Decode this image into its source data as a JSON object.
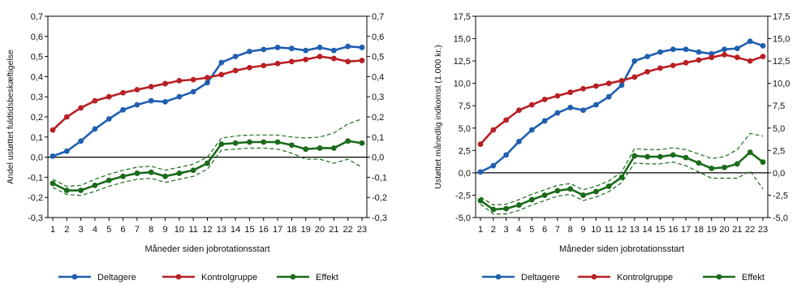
{
  "chart_data": [
    {
      "type": "line",
      "ylabel": "Andel ustøttet fuldtidsbeskæftigelse",
      "xlabel": "Måneder siden jobrotationsstart",
      "x": [
        1,
        2,
        3,
        4,
        5,
        6,
        7,
        8,
        9,
        10,
        11,
        12,
        13,
        14,
        15,
        16,
        17,
        18,
        19,
        20,
        21,
        22,
        23
      ],
      "ylim": [
        -0.3,
        0.7
      ],
      "yticks": [
        "-0,3",
        "-0,2",
        "-0,1",
        "0,0",
        "0,1",
        "0,2",
        "0,3",
        "0,4",
        "0,5",
        "0,6",
        "0,7"
      ],
      "series": [
        {
          "name": "Deltagere",
          "color": "#1f5fb0",
          "values": [
            0.005,
            0.03,
            0.08,
            0.14,
            0.19,
            0.235,
            0.26,
            0.28,
            0.275,
            0.3,
            0.325,
            0.37,
            0.47,
            0.5,
            0.525,
            0.535,
            0.545,
            0.54,
            0.53,
            0.545,
            0.53,
            0.55,
            0.545
          ]
        },
        {
          "name": "Kontrolgruppe",
          "color": "#b82025",
          "values": [
            0.135,
            0.2,
            0.245,
            0.28,
            0.3,
            0.32,
            0.335,
            0.35,
            0.365,
            0.38,
            0.385,
            0.395,
            0.41,
            0.43,
            0.445,
            0.455,
            0.465,
            0.475,
            0.485,
            0.5,
            0.49,
            0.475,
            0.48
          ]
        },
        {
          "name": "Effekt",
          "color": "#1a6b1a",
          "values": [
            -0.13,
            -0.165,
            -0.165,
            -0.14,
            -0.115,
            -0.095,
            -0.08,
            -0.075,
            -0.095,
            -0.08,
            -0.065,
            -0.03,
            0.065,
            0.07,
            0.075,
            0.075,
            0.075,
            0.06,
            0.04,
            0.045,
            0.045,
            0.08,
            0.07
          ]
        }
      ],
      "ci_upper": [
        -0.11,
        -0.145,
        -0.14,
        -0.11,
        -0.085,
        -0.065,
        -0.05,
        -0.045,
        -0.065,
        -0.05,
        -0.035,
        0.0,
        0.095,
        0.105,
        0.11,
        0.11,
        0.11,
        0.1,
        0.095,
        0.1,
        0.12,
        0.165,
        0.19
      ],
      "ci_lower": [
        -0.15,
        -0.185,
        -0.19,
        -0.17,
        -0.145,
        -0.125,
        -0.11,
        -0.105,
        -0.125,
        -0.11,
        -0.095,
        -0.06,
        0.035,
        0.04,
        0.045,
        0.045,
        0.04,
        0.02,
        -0.01,
        -0.01,
        -0.03,
        -0.01,
        -0.05
      ]
    },
    {
      "type": "line",
      "ylabel": "Ustøttet månedlig indkomst (1.000 kr.)",
      "xlabel": "Måneder siden jobrotationsstart",
      "x": [
        1,
        2,
        3,
        4,
        5,
        6,
        7,
        8,
        9,
        10,
        11,
        12,
        13,
        14,
        15,
        16,
        17,
        18,
        19,
        20,
        21,
        22,
        23
      ],
      "ylim": [
        -5.0,
        17.5
      ],
      "yticks": [
        "-5,0",
        "-2,5",
        "0,0",
        "2,5",
        "5,0",
        "7,5",
        "10,0",
        "12,5",
        "15,0",
        "17,5"
      ],
      "series": [
        {
          "name": "Deltagere",
          "color": "#1f5fb0",
          "values": [
            0.1,
            0.8,
            2.0,
            3.5,
            4.8,
            5.8,
            6.7,
            7.3,
            7.0,
            7.6,
            8.5,
            9.8,
            12.5,
            13.0,
            13.5,
            13.8,
            13.8,
            13.5,
            13.3,
            13.8,
            13.9,
            14.7,
            14.2
          ]
        },
        {
          "name": "Kontrolgruppe",
          "color": "#b82025",
          "values": [
            3.2,
            4.8,
            5.9,
            7.0,
            7.6,
            8.2,
            8.6,
            9.0,
            9.4,
            9.7,
            10.0,
            10.3,
            10.7,
            11.3,
            11.7,
            12.0,
            12.3,
            12.6,
            12.9,
            13.2,
            12.9,
            12.5,
            13.0
          ]
        },
        {
          "name": "Effekt",
          "color": "#1a6b1a",
          "values": [
            -3.1,
            -4.1,
            -4.0,
            -3.6,
            -3.0,
            -2.5,
            -2.0,
            -1.8,
            -2.5,
            -2.1,
            -1.5,
            -0.5,
            1.9,
            1.8,
            1.8,
            2.0,
            1.7,
            1.1,
            0.5,
            0.6,
            1.0,
            2.3,
            1.2
          ]
        }
      ],
      "ci_upper": [
        -2.7,
        -3.6,
        -3.5,
        -3.0,
        -2.4,
        -1.9,
        -1.4,
        -1.2,
        -1.9,
        -1.5,
        -0.9,
        0.1,
        2.7,
        2.6,
        2.6,
        2.8,
        2.6,
        2.1,
        1.6,
        1.8,
        2.6,
        4.4,
        4.1
      ],
      "ci_lower": [
        -3.5,
        -4.6,
        -4.6,
        -4.2,
        -3.6,
        -3.1,
        -2.6,
        -2.4,
        -3.1,
        -2.7,
        -2.1,
        -1.1,
        1.1,
        1.0,
        1.0,
        1.2,
        0.8,
        0.1,
        -0.6,
        -0.6,
        -0.6,
        0.2,
        -1.8
      ]
    }
  ]
}
